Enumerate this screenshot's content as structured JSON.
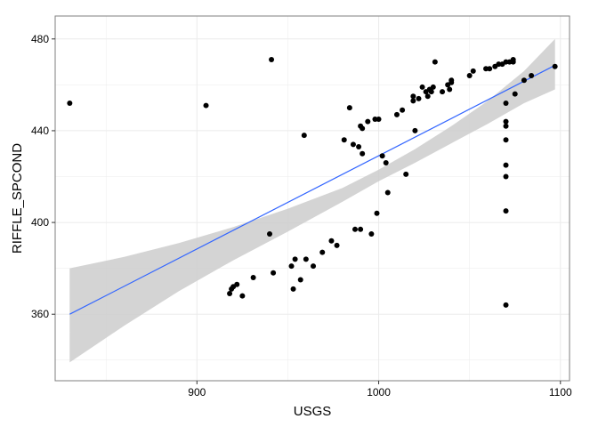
{
  "chart_data": {
    "type": "scatter",
    "title": "",
    "xlabel": "USGS",
    "ylabel": "RIFFLE_SPCOND",
    "xlim": [
      822,
      1105
    ],
    "ylim": [
      331,
      490
    ],
    "x_ticks": [
      900,
      1000,
      1100
    ],
    "y_ticks": [
      360,
      400,
      440,
      480
    ],
    "grid": true,
    "legend": "none",
    "colors": {
      "point": "#000000",
      "fit_line": "#3366ff",
      "confidence_band": "#cccccc",
      "panel_border": "#7f7f7f",
      "grid": "#ebebeb"
    },
    "points": [
      {
        "x": 830,
        "y": 452
      },
      {
        "x": 905,
        "y": 451
      },
      {
        "x": 918,
        "y": 369
      },
      {
        "x": 919,
        "y": 371
      },
      {
        "x": 920,
        "y": 372
      },
      {
        "x": 922,
        "y": 373
      },
      {
        "x": 925,
        "y": 368
      },
      {
        "x": 931,
        "y": 376
      },
      {
        "x": 940,
        "y": 395
      },
      {
        "x": 941,
        "y": 471
      },
      {
        "x": 942,
        "y": 378
      },
      {
        "x": 952,
        "y": 381
      },
      {
        "x": 953,
        "y": 371
      },
      {
        "x": 954,
        "y": 384
      },
      {
        "x": 957,
        "y": 375
      },
      {
        "x": 959,
        "y": 438
      },
      {
        "x": 960,
        "y": 384
      },
      {
        "x": 964,
        "y": 381
      },
      {
        "x": 969,
        "y": 387
      },
      {
        "x": 974,
        "y": 392
      },
      {
        "x": 977,
        "y": 390
      },
      {
        "x": 981,
        "y": 436
      },
      {
        "x": 984,
        "y": 450
      },
      {
        "x": 986,
        "y": 434
      },
      {
        "x": 987,
        "y": 397
      },
      {
        "x": 989,
        "y": 433
      },
      {
        "x": 990,
        "y": 397
      },
      {
        "x": 990,
        "y": 442
      },
      {
        "x": 991,
        "y": 430
      },
      {
        "x": 991,
        "y": 441
      },
      {
        "x": 994,
        "y": 444
      },
      {
        "x": 996,
        "y": 395
      },
      {
        "x": 998,
        "y": 445
      },
      {
        "x": 999,
        "y": 404
      },
      {
        "x": 1000,
        "y": 445
      },
      {
        "x": 1002,
        "y": 429
      },
      {
        "x": 1004,
        "y": 426
      },
      {
        "x": 1005,
        "y": 413
      },
      {
        "x": 1010,
        "y": 447
      },
      {
        "x": 1013,
        "y": 449
      },
      {
        "x": 1015,
        "y": 421
      },
      {
        "x": 1019,
        "y": 455
      },
      {
        "x": 1019,
        "y": 453
      },
      {
        "x": 1020,
        "y": 440
      },
      {
        "x": 1022,
        "y": 454
      },
      {
        "x": 1024,
        "y": 459
      },
      {
        "x": 1026,
        "y": 457
      },
      {
        "x": 1027,
        "y": 455
      },
      {
        "x": 1028,
        "y": 458
      },
      {
        "x": 1029,
        "y": 457
      },
      {
        "x": 1030,
        "y": 459
      },
      {
        "x": 1031,
        "y": 470
      },
      {
        "x": 1035,
        "y": 457
      },
      {
        "x": 1038,
        "y": 460
      },
      {
        "x": 1039,
        "y": 458
      },
      {
        "x": 1040,
        "y": 461
      },
      {
        "x": 1040,
        "y": 462
      },
      {
        "x": 1050,
        "y": 464
      },
      {
        "x": 1052,
        "y": 466
      },
      {
        "x": 1059,
        "y": 467
      },
      {
        "x": 1061,
        "y": 467
      },
      {
        "x": 1064,
        "y": 468
      },
      {
        "x": 1066,
        "y": 469
      },
      {
        "x": 1068,
        "y": 469
      },
      {
        "x": 1070,
        "y": 470
      },
      {
        "x": 1072,
        "y": 470
      },
      {
        "x": 1074,
        "y": 471
      },
      {
        "x": 1074,
        "y": 470
      },
      {
        "x": 1070,
        "y": 452
      },
      {
        "x": 1070,
        "y": 444
      },
      {
        "x": 1070,
        "y": 442
      },
      {
        "x": 1070,
        "y": 436
      },
      {
        "x": 1070,
        "y": 425
      },
      {
        "x": 1070,
        "y": 420
      },
      {
        "x": 1070,
        "y": 405
      },
      {
        "x": 1070,
        "y": 364
      },
      {
        "x": 1075,
        "y": 456
      },
      {
        "x": 1080,
        "y": 462
      },
      {
        "x": 1084,
        "y": 464
      },
      {
        "x": 1097,
        "y": 468
      }
    ],
    "fit_line": {
      "x": [
        830,
        1097
      ],
      "y": [
        360,
        468.5
      ]
    },
    "confidence_band": {
      "x": [
        830,
        860,
        890,
        920,
        950,
        980,
        1000,
        1020,
        1040,
        1060,
        1080,
        1097
      ],
      "lower": [
        339,
        355,
        370,
        383.5,
        396,
        409,
        418,
        426,
        434.5,
        443,
        452,
        458
      ],
      "upper": [
        380,
        385,
        391,
        398,
        406,
        415,
        423,
        432,
        442,
        453,
        466,
        480
      ]
    }
  }
}
